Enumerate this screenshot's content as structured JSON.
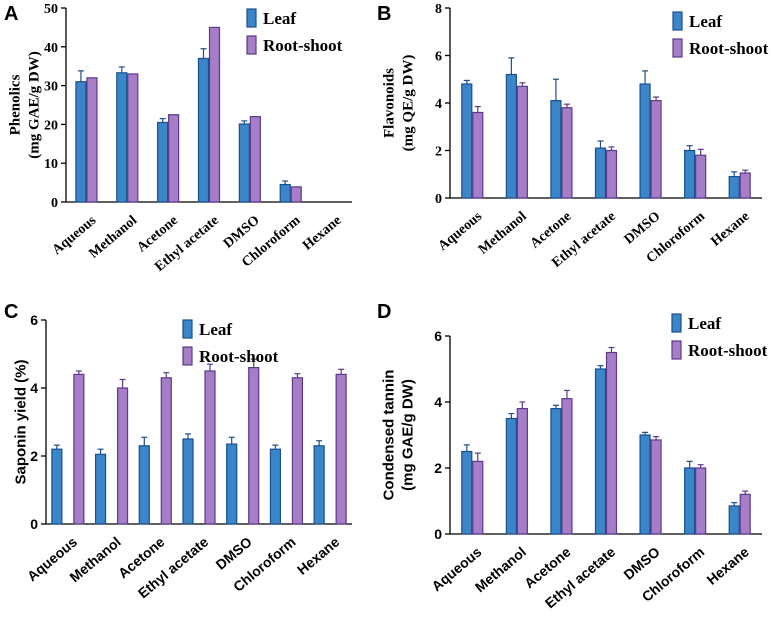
{
  "colors": {
    "leaf_fill": "#3a86c8",
    "leaf_edge": "#1a4f8f",
    "root_fill": "#a67ec8",
    "root_edge": "#5b3a8a",
    "axis": "#000000"
  },
  "chart_data": [
    {
      "panel": "A",
      "type": "bar",
      "ylabel_lines": [
        "Phenolics",
        "(mg GAE/g DW)"
      ],
      "ylim": [
        0,
        50
      ],
      "yticks": [
        0,
        10,
        20,
        30,
        40,
        50
      ],
      "categories": [
        "Aqueous",
        "Methanol",
        "Acetone",
        "Ethyl acetate",
        "DMSO",
        "Chloroform",
        "Hexane"
      ],
      "legend": [
        "Leaf",
        "Root-shoot"
      ],
      "series": [
        {
          "name": "Leaf",
          "values": [
            31,
            33.3,
            20.5,
            37,
            20.1,
            4.5,
            0
          ],
          "errors": [
            2.8,
            1.5,
            1.0,
            2.5,
            0.8,
            0.9,
            0
          ]
        },
        {
          "name": "Root-shoot",
          "values": [
            32,
            33,
            22.5,
            45,
            22,
            3.9,
            0
          ],
          "errors": [
            0,
            0,
            0,
            0,
            0,
            0,
            0
          ]
        }
      ]
    },
    {
      "panel": "B",
      "type": "bar",
      "ylabel_lines": [
        "Flavonoids",
        "(mg QE/g DW)"
      ],
      "ylim": [
        0,
        8
      ],
      "yticks": [
        0,
        2,
        4,
        6,
        8
      ],
      "categories": [
        "Aqueous",
        "Methanol",
        "Acetone",
        "Ethyl acetate",
        "DMSO",
        "Chloroform",
        "Hexane"
      ],
      "legend": [
        "Leaf",
        "Root-shoot"
      ],
      "series": [
        {
          "name": "Leaf",
          "values": [
            4.8,
            5.2,
            4.1,
            2.1,
            4.8,
            2.0,
            0.9
          ],
          "errors": [
            0.15,
            0.7,
            0.9,
            0.3,
            0.55,
            0.2,
            0.2
          ]
        },
        {
          "name": "Root-shoot",
          "values": [
            3.6,
            4.7,
            3.8,
            2.0,
            4.1,
            1.8,
            1.05
          ],
          "errors": [
            0.25,
            0.15,
            0.15,
            0.15,
            0.15,
            0.25,
            0.12
          ]
        }
      ]
    },
    {
      "panel": "C",
      "type": "bar",
      "ylabel_lines": [
        "Saponin yield (%)"
      ],
      "ylim": [
        0,
        6
      ],
      "yticks": [
        0,
        2,
        4,
        6
      ],
      "categories": [
        "Aqueous",
        "Methanol",
        "Acetone",
        "Ethyl acetate",
        "DMSO",
        "Chloroform",
        "Hexane"
      ],
      "legend": [
        "Leaf",
        "Root-shoot"
      ],
      "series": [
        {
          "name": "Leaf",
          "values": [
            2.2,
            2.05,
            2.3,
            2.5,
            2.35,
            2.2,
            2.3
          ],
          "errors": [
            0.12,
            0.15,
            0.25,
            0.15,
            0.2,
            0.12,
            0.15
          ]
        },
        {
          "name": "Root-shoot",
          "values": [
            4.4,
            4.0,
            4.3,
            4.5,
            4.6,
            4.3,
            4.4
          ],
          "errors": [
            0.1,
            0.25,
            0.15,
            0.2,
            0.25,
            0.12,
            0.15
          ]
        }
      ]
    },
    {
      "panel": "D",
      "type": "bar",
      "ylabel_lines": [
        "Condensed tannin",
        "(mg GAE/g DW)"
      ],
      "ylim": [
        0,
        6
      ],
      "yticks": [
        0,
        2,
        4,
        6
      ],
      "categories": [
        "Aqueous",
        "Methanol",
        "Acetone",
        "Ethyl acetate",
        "DMSO",
        "Chloroform",
        "Hexane"
      ],
      "legend": [
        "Leaf",
        "Root-shoot"
      ],
      "series": [
        {
          "name": "Leaf",
          "values": [
            2.5,
            3.5,
            3.8,
            5.0,
            3.0,
            2.0,
            0.85
          ],
          "errors": [
            0.2,
            0.15,
            0.1,
            0.1,
            0.08,
            0.2,
            0.1
          ]
        },
        {
          "name": "Root-shoot",
          "values": [
            2.2,
            3.8,
            4.1,
            5.5,
            2.85,
            2.0,
            1.2
          ],
          "errors": [
            0.25,
            0.2,
            0.25,
            0.15,
            0.1,
            0.1,
            0.1
          ]
        }
      ]
    }
  ]
}
